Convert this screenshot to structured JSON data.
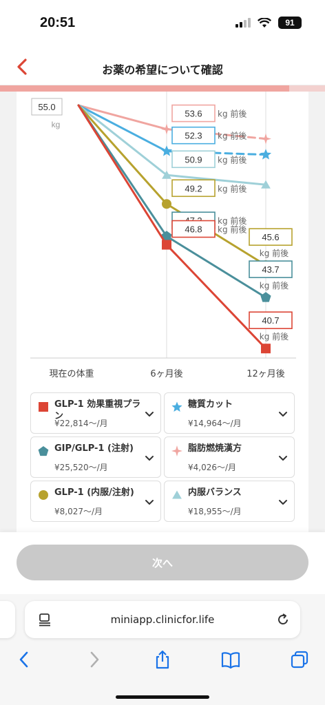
{
  "status": {
    "time": "20:51",
    "battery": "91"
  },
  "header": {
    "title": "お薬の希望について確認"
  },
  "progress": {
    "fraction": 0.89
  },
  "chart_data": {
    "type": "line",
    "categories": [
      "現在の体重",
      "6ヶ月後",
      "12ヶ月後"
    ],
    "start": {
      "value": "55.0",
      "unit": "kg"
    },
    "series": [
      {
        "name": "脂肪燃焼漢方",
        "color": "#f0a5a0",
        "marker": "star4",
        "dashed": true,
        "values": [
          55.0,
          53.6,
          null
        ],
        "label6": "53.6",
        "label6_unit": "kg 前後"
      },
      {
        "name": "糖質カット",
        "color": "#4aaee0",
        "marker": "star5",
        "dashed": true,
        "values": [
          55.0,
          52.3,
          null
        ],
        "label6": "52.3",
        "label6_unit": "kg 前後"
      },
      {
        "name": "内服バランス",
        "color": "#9fd0d8",
        "marker": "triangle",
        "dashed": false,
        "values": [
          55.0,
          50.9,
          null
        ],
        "label6": "50.9",
        "label6_unit": "kg 前後"
      },
      {
        "name": "GLP-1 (内服/注射)",
        "color": "#b7a22e",
        "marker": "circle",
        "dashed": false,
        "values": [
          55.0,
          49.2,
          45.6
        ],
        "label6": "49.2",
        "label6_unit": "kg 前後",
        "label12": "45.6",
        "label12_unit": "kg 前後"
      },
      {
        "name": "GIP/GLP-1 (注射)",
        "color": "#4a8f9b",
        "marker": "pentagon",
        "dashed": false,
        "values": [
          55.0,
          47.3,
          43.7
        ],
        "label6": "47.3",
        "label6_unit": "kg 前後",
        "label12": "43.7",
        "label12_unit": "kg 前後"
      },
      {
        "name": "GLP-1 効果重視プラン",
        "color": "#dc4535",
        "marker": "square",
        "dashed": false,
        "values": [
          55.0,
          46.8,
          40.7
        ],
        "label6": "46.8",
        "label6_unit": "kg 前後",
        "label12": "40.7",
        "label12_unit": "kg 前後"
      }
    ]
  },
  "legend": [
    {
      "name": "GLP-1 効果重視プラン",
      "price": "¥22,814〜/月",
      "color": "#dc4535",
      "icon": "square-icon"
    },
    {
      "name": "糖質カット",
      "price": "¥14,964〜/月",
      "color": "#4aaee0",
      "icon": "star-icon"
    },
    {
      "name": "GIP/GLP-1 (注射)",
      "price": "¥25,520〜/月",
      "color": "#4a8f9b",
      "icon": "pentagon-icon"
    },
    {
      "name": "脂肪燃焼漢方",
      "price": "¥4,026〜/月",
      "color": "#f0a5a0",
      "icon": "sparkle-icon"
    },
    {
      "name": "GLP-1 (内服/注射)",
      "price": "¥8,027〜/月",
      "color": "#b7a22e",
      "icon": "circle-icon"
    },
    {
      "name": "内服バランス",
      "price": "¥18,955〜/月",
      "color": "#9fd0d8",
      "icon": "triangle-icon"
    }
  ],
  "next_button": {
    "label": "次へ"
  },
  "browser": {
    "url": "miniapp.clinicfor.life"
  }
}
